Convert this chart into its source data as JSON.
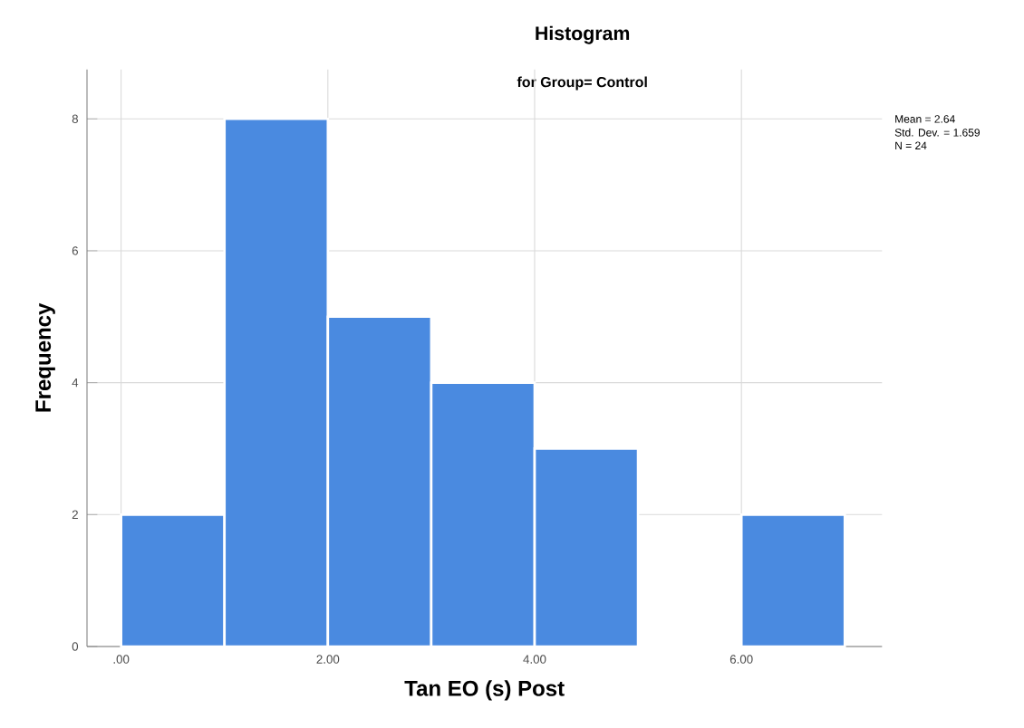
{
  "chart_data": {
    "type": "histogram",
    "title": "Histogram",
    "subtitle": "for Group= Control",
    "xlabel": "Tan EO (s)  Post",
    "ylabel": "Frequency",
    "bins": [
      0,
      1,
      2,
      3,
      4,
      5,
      6,
      7
    ],
    "values": [
      2,
      8,
      5,
      4,
      3,
      0,
      2
    ],
    "color": "#4a8ae0",
    "xlim": [
      -0.33,
      7.36
    ],
    "ylim": [
      0,
      8.75
    ],
    "xticks": [
      {
        "value": 0,
        "label": ".00"
      },
      {
        "value": 2,
        "label": "2.00"
      },
      {
        "value": 4,
        "label": "4.00"
      },
      {
        "value": 6,
        "label": "6.00"
      }
    ],
    "yticks": [
      0,
      2,
      4,
      6,
      8
    ],
    "grid": true,
    "annotations": [
      "Mean = 2.64",
      "Std. Dev. = 1.659",
      "N = 24"
    ]
  }
}
